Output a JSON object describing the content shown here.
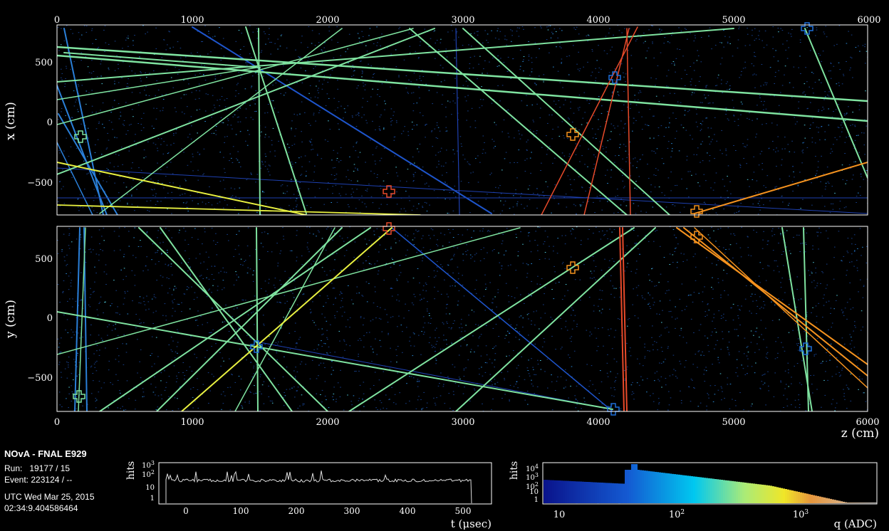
{
  "info": {
    "title": "NOvA - FNAL E929",
    "run_label": "Run:",
    "run_value": "19177 / 15",
    "event_label": "Event:",
    "event_value": "223124 / --",
    "utc_line": "UTC Wed Mar 25, 2015",
    "time_line": "02:34:9.404586464"
  },
  "top_view": {
    "ylabel": "x (cm)",
    "z_ticks": [
      "0",
      "1000",
      "2000",
      "3000",
      "4000",
      "5000",
      "6000"
    ],
    "y_ticks": [
      "500",
      "0",
      "−500"
    ]
  },
  "side_view": {
    "ylabel": "y (cm)",
    "xlabel": "z (cm)",
    "z_ticks": [
      "0",
      "1000",
      "2000",
      "3000",
      "4000",
      "5000",
      "6000"
    ],
    "y_ticks": [
      "500",
      "0",
      "−500"
    ]
  },
  "time_hist": {
    "xlabel": "t (μsec)",
    "ylabel": "hits",
    "x_ticks": [
      "0",
      "100",
      "200",
      "300",
      "400",
      "500"
    ],
    "y_ticks": [
      "10",
      "1"
    ],
    "y_tick_pow2": "10",
    "y_tick_pow2_exp": "2",
    "y_tick_pow3": "10",
    "y_tick_pow3_exp": "3"
  },
  "charge_hist": {
    "xlabel": "q (ADC)",
    "ylabel": "hits",
    "x_tick_10": "10",
    "x_tick_100": "10",
    "x_tick_100_exp": "2",
    "x_tick_1000": "10",
    "x_tick_1000_exp": "3",
    "y_ticks": [
      "10",
      "1"
    ],
    "y_tick_pow2": "10",
    "y_tick_pow2_exp": "2",
    "y_tick_pow3": "10",
    "y_tick_pow3_exp": "3",
    "y_tick_pow4": "10",
    "y_tick_pow4_exp": "4"
  },
  "colors": {
    "frame": "#ffffff",
    "track_green": "#7fe3a0",
    "track_blue": "#1e6fd9",
    "track_red": "#e84a2a",
    "track_orange": "#f5921e",
    "track_yellow": "#e8f040",
    "hit_dim": "#1a4a9a"
  }
}
